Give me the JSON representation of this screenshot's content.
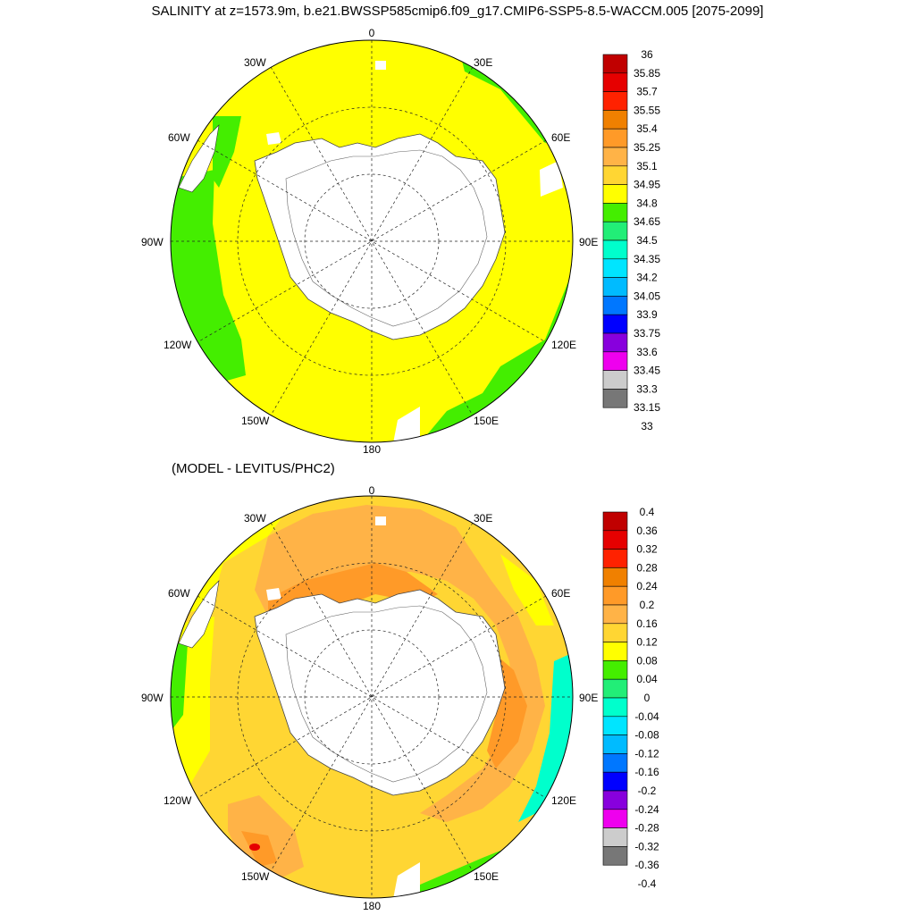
{
  "title": "SALINITY at z=1573.9m, b.e21.BWSSP585cmip6.f09_g17.CMIP6-SSP5-8.5-WACCM.005 [2075-2099]",
  "subtitle": "(MODEL - LEVITUS/PHC2)",
  "longitude_labels": {
    "top": "0",
    "top_right": "30E",
    "right_upper": "60E",
    "right": "90E",
    "right_lower": "120E",
    "bottom_right": "150E",
    "bottom": "180",
    "bottom_left": "150W",
    "left_lower": "120W",
    "left": "90W",
    "left_upper": "60W",
    "top_left": "30W"
  },
  "colorbar_top": {
    "labels": [
      "36",
      "35.85",
      "35.7",
      "35.55",
      "35.4",
      "35.25",
      "35.1",
      "34.95",
      "34.8",
      "34.65",
      "34.5",
      "34.35",
      "34.2",
      "34.05",
      "33.9",
      "33.75",
      "33.6",
      "33.45",
      "33.3",
      "33.15",
      "33"
    ],
    "colors": [
      "#c00000",
      "#e60000",
      "#ff2200",
      "#f08000",
      "#ff9a28",
      "#ffb347",
      "#ffd633",
      "#ffff00",
      "#44ee00",
      "#22ee77",
      "#00ffcc",
      "#00e5ff",
      "#00bbff",
      "#0077ff",
      "#0000ff",
      "#8800dd",
      "#ee00ee",
      "#cccccc",
      "#777777"
    ]
  },
  "colorbar_bottom": {
    "labels": [
      "0.4",
      "0.36",
      "0.32",
      "0.28",
      "0.24",
      "0.2",
      "0.16",
      "0.12",
      "0.08",
      "0.04",
      "0",
      "-0.04",
      "-0.08",
      "-0.12",
      "-0.16",
      "-0.2",
      "-0.24",
      "-0.28",
      "-0.32",
      "-0.36",
      "-0.4"
    ],
    "colors": [
      "#c00000",
      "#e60000",
      "#ff2200",
      "#f08000",
      "#ff9a28",
      "#ffb347",
      "#ffd633",
      "#ffff00",
      "#44ee00",
      "#22ee77",
      "#00ffcc",
      "#00e5ff",
      "#00bbff",
      "#0077ff",
      "#0000ff",
      "#8800dd",
      "#ee00ee",
      "#cccccc",
      "#777777"
    ]
  },
  "palette": {
    "yellow": "#ffff00",
    "green": "#44ee00",
    "light_orange": "#ffd633",
    "orange": "#ffb347",
    "dark_orange": "#ff9a28",
    "red": "#e60000",
    "cyan": "#00ffcc",
    "land": "#ffffff"
  }
}
